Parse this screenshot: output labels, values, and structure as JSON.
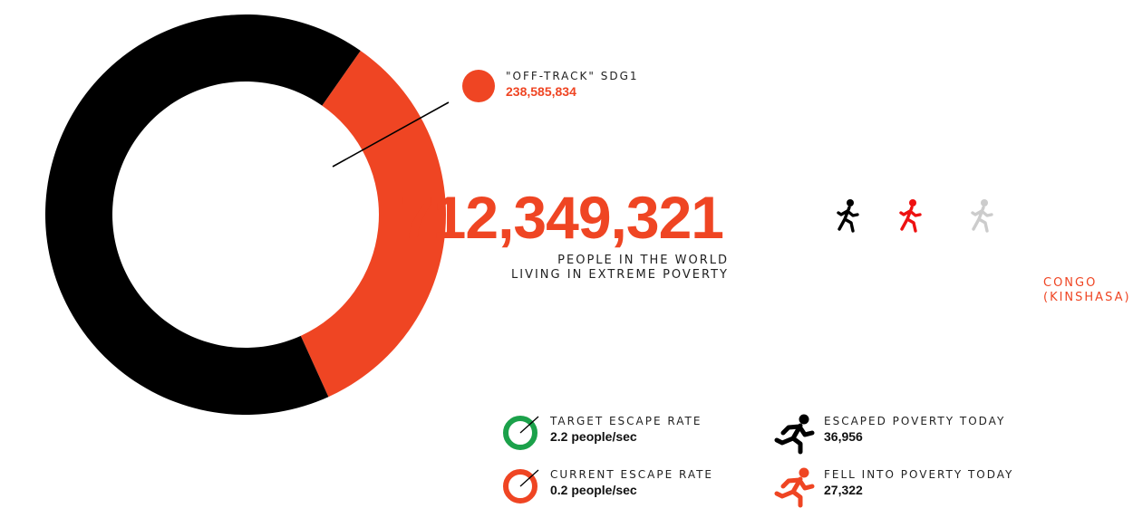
{
  "colors": {
    "accent": "#ef4523",
    "black": "#000000",
    "green": "#1ba14a",
    "gray": "#cccccc",
    "red": "#ee1111"
  },
  "chart_data": {
    "type": "pie",
    "title": "",
    "total": 712349321,
    "slices": [
      {
        "name": "\"OFF-TRACK\" SDG1",
        "value": 238585834,
        "color": "#ef4523"
      },
      {
        "value": 473763487,
        "color": "#000000"
      }
    ]
  },
  "off_track": {
    "label": "\"OFF-TRACK\" SDG1",
    "value": "238,585,834"
  },
  "headline": {
    "number": "712,349,321",
    "line1": "PEOPLE IN THE WORLD",
    "line2": "LIVING IN EXTREME POVERTY"
  },
  "runners": [
    {
      "icon": "runner-icon",
      "color": "#000000"
    },
    {
      "icon": "runner-icon",
      "color": "#ee1111"
    },
    {
      "icon": "runner-icon",
      "color": "#cccccc"
    }
  ],
  "country": {
    "line1": "CONGO",
    "line2": "(KINSHASA)"
  },
  "stats": {
    "target": {
      "label": "TARGET ESCAPE RATE",
      "value": "2.2 people/sec",
      "icon": "gauge-icon",
      "color": "#1ba14a"
    },
    "current": {
      "label": "CURRENT ESCAPE RATE",
      "value": "0.2 people/sec",
      "icon": "gauge-icon",
      "color": "#ef4523"
    },
    "escaped": {
      "label": "ESCAPED POVERTY TODAY",
      "value": "36,956",
      "icon": "running-person-icon",
      "color": "#000000"
    },
    "fell": {
      "label": "FELL INTO POVERTY TODAY",
      "value": "27,322",
      "icon": "running-person-icon",
      "color": "#ef4523"
    }
  }
}
